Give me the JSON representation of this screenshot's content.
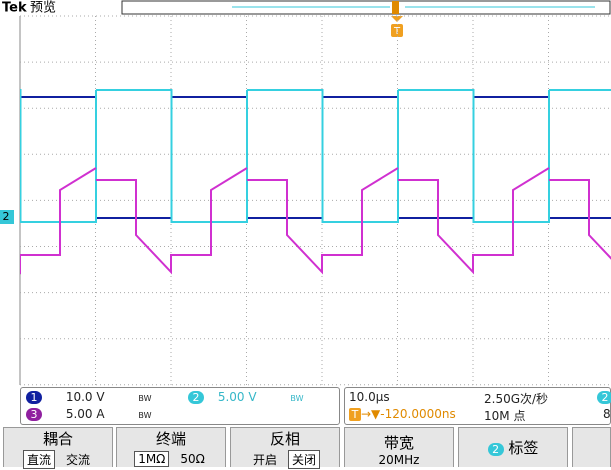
{
  "header": {
    "brand": "Tek",
    "mode": "预览"
  },
  "markers": {
    "trigger": "T",
    "channel": "2"
  },
  "channels": [
    {
      "number": "1",
      "scale": "10.0 V",
      "bandwidth": "BW"
    },
    {
      "number": "2",
      "scale": "5.00 V",
      "bandwidth": "BW"
    },
    {
      "number": "3",
      "scale": "5.00 A",
      "bandwidth": "BW"
    }
  ],
  "acquisition": {
    "horizontal_scale": "10.0µs",
    "sample_rate": "2.50G次/秒",
    "trigger_icon": "T",
    "trigger_position": "-120.0000ns",
    "record_length": "10M 点",
    "edge_channel": "2",
    "edge_level": "8"
  },
  "menu": [
    {
      "title": "耦合",
      "options": [
        "直流",
        "交流"
      ]
    },
    {
      "title": "终端",
      "options": [
        "1MΩ",
        "50Ω"
      ]
    },
    {
      "title": "反相",
      "options": [
        "开启",
        "关闭"
      ]
    },
    {
      "title": "带宽",
      "options": [
        "20MHz"
      ]
    },
    {
      "title": "标签",
      "badge": "2"
    }
  ]
}
